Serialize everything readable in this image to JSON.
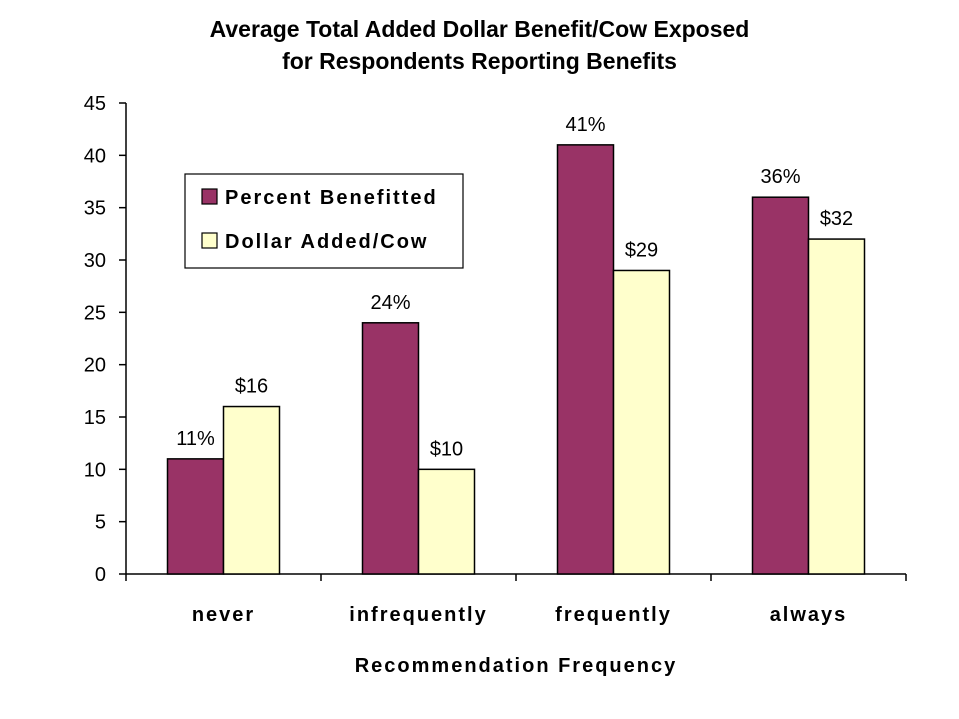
{
  "chart_data": {
    "type": "bar",
    "title": "Average Total Added Dollar Benefit/Cow Exposed",
    "subtitle": "for Respondents Reporting Benefits",
    "xlabel": "Recommendation Frequency",
    "ylabel": "",
    "ylim": [
      0,
      45
    ],
    "yticks": [
      0,
      5,
      10,
      15,
      20,
      25,
      30,
      35,
      40,
      45
    ],
    "grid": false,
    "legend_position": "upper-left",
    "categories": [
      "never",
      "infrequently",
      "frequently",
      "always"
    ],
    "series": [
      {
        "name": "Percent Benefitted",
        "color": "#993366",
        "values": [
          11,
          24,
          41,
          36
        ],
        "labels": [
          "11%",
          "24%",
          "41%",
          "36%"
        ]
      },
      {
        "name": "Dollar Added/Cow",
        "color": "#FFFFCC",
        "values": [
          16,
          10,
          29,
          32
        ],
        "labels": [
          "$16",
          "$10",
          "$29",
          "$32"
        ]
      }
    ]
  }
}
